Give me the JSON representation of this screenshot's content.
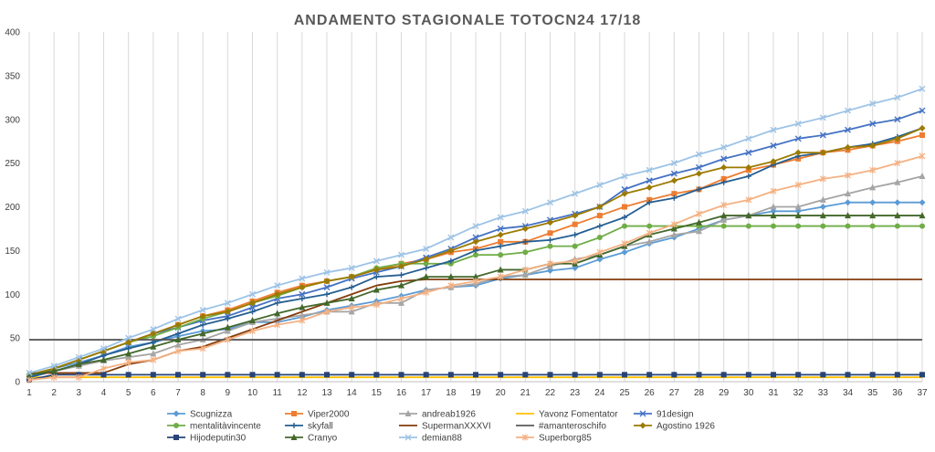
{
  "chart_data": {
    "type": "line",
    "title": "ANDAMENTO STAGIONALE TOTOCN24 17/18",
    "xlabel": "",
    "ylabel": "",
    "ylim": [
      0,
      400
    ],
    "yticks": [
      0,
      50,
      100,
      150,
      200,
      250,
      300,
      350,
      400
    ],
    "x": [
      1,
      2,
      3,
      4,
      5,
      6,
      7,
      8,
      9,
      10,
      11,
      12,
      13,
      14,
      15,
      16,
      17,
      18,
      19,
      20,
      21,
      22,
      23,
      24,
      25,
      26,
      27,
      28,
      29,
      30,
      31,
      32,
      33,
      34,
      35,
      36,
      37
    ],
    "grid": "vertical",
    "legend_position": "bottom",
    "series": [
      {
        "name": "Scugnizza",
        "color": "#5b9bd5",
        "marker": "diamond",
        "values": [
          5,
          15,
          22,
          30,
          40,
          45,
          52,
          58,
          60,
          68,
          68,
          74,
          82,
          87,
          92,
          98,
          105,
          108,
          110,
          118,
          122,
          127,
          130,
          140,
          148,
          158,
          165,
          175,
          185,
          190,
          195,
          195,
          200,
          205,
          205,
          205,
          205
        ]
      },
      {
        "name": "Viper2000",
        "color": "#ed7d31",
        "marker": "square",
        "values": [
          5,
          15,
          25,
          35,
          45,
          55,
          65,
          75,
          82,
          92,
          102,
          110,
          115,
          120,
          128,
          135,
          140,
          148,
          152,
          160,
          160,
          170,
          180,
          190,
          200,
          208,
          215,
          220,
          232,
          242,
          248,
          255,
          262,
          265,
          270,
          275,
          282
        ]
      },
      {
        "name": "andreab1926",
        "color": "#a5a5a5",
        "marker": "triangle",
        "values": [
          5,
          12,
          18,
          24,
          28,
          32,
          42,
          48,
          58,
          68,
          72,
          76,
          80,
          80,
          90,
          90,
          105,
          108,
          112,
          120,
          122,
          132,
          140,
          145,
          155,
          160,
          168,
          172,
          185,
          190,
          200,
          200,
          208,
          215,
          222,
          228,
          235
        ]
      },
      {
        "name": "Yavonz Fomentator",
        "color": "#ffc000",
        "marker": "none",
        "values": [
          5,
          5,
          5,
          5,
          5,
          5,
          5,
          5,
          5,
          5,
          5,
          5,
          5,
          5,
          5,
          5,
          5,
          5,
          5,
          5,
          5,
          5,
          5,
          5,
          5,
          5,
          5,
          5,
          5,
          5,
          5,
          5,
          5,
          5,
          5,
          5,
          5
        ]
      },
      {
        "name": "91design",
        "color": "#4472c4",
        "marker": "x",
        "values": [
          5,
          15,
          25,
          35,
          45,
          55,
          62,
          70,
          75,
          85,
          95,
          100,
          108,
          118,
          125,
          132,
          142,
          152,
          165,
          175,
          178,
          185,
          192,
          200,
          220,
          230,
          238,
          245,
          255,
          262,
          270,
          278,
          282,
          288,
          295,
          300,
          310
        ]
      },
      {
        "name": "mentalitàvincente",
        "color": "#70ad47",
        "marker": "circle",
        "values": [
          8,
          15,
          25,
          35,
          45,
          52,
          62,
          72,
          80,
          90,
          98,
          108,
          115,
          120,
          130,
          135,
          135,
          135,
          145,
          145,
          148,
          155,
          155,
          165,
          178,
          178,
          178,
          178,
          178,
          178,
          178,
          178,
          178,
          178,
          178,
          178,
          178
        ]
      },
      {
        "name": "skyfall",
        "color": "#255e91",
        "marker": "plus",
        "values": [
          5,
          12,
          20,
          30,
          38,
          45,
          55,
          65,
          72,
          80,
          90,
          95,
          100,
          108,
          120,
          122,
          130,
          138,
          150,
          155,
          160,
          162,
          168,
          178,
          188,
          205,
          210,
          220,
          228,
          235,
          248,
          258,
          262,
          268,
          272,
          280,
          290
        ]
      },
      {
        "name": "SupermanXXXVI",
        "color": "#843c0c",
        "marker": "none",
        "values": [
          10,
          10,
          10,
          10,
          20,
          25,
          35,
          40,
          50,
          60,
          70,
          80,
          90,
          100,
          110,
          115,
          117,
          117,
          117,
          117,
          117,
          117,
          117,
          117,
          117,
          117,
          117,
          117,
          117,
          117,
          117,
          117,
          117,
          117,
          117,
          117,
          117
        ]
      },
      {
        "name": "#amanteroschifo",
        "color": "#595959",
        "marker": "none",
        "values": [
          48,
          48,
          48,
          48,
          48,
          48,
          48,
          48,
          48,
          48,
          48,
          48,
          48,
          48,
          48,
          48,
          48,
          48,
          48,
          48,
          48,
          48,
          48,
          48,
          48,
          48,
          48,
          48,
          48,
          48,
          48,
          48,
          48,
          48,
          48,
          48,
          48
        ]
      },
      {
        "name": "Agostino 1926",
        "color": "#9c7a00",
        "marker": "diamond",
        "values": [
          8,
          15,
          25,
          35,
          45,
          55,
          65,
          75,
          80,
          90,
          100,
          108,
          115,
          120,
          128,
          132,
          140,
          150,
          160,
          168,
          175,
          182,
          190,
          200,
          215,
          222,
          230,
          238,
          245,
          245,
          252,
          262,
          262,
          268,
          270,
          278,
          290
        ]
      },
      {
        "name": "Hijodeputin30",
        "color": "#264478",
        "marker": "square",
        "values": [
          2,
          8,
          8,
          8,
          8,
          8,
          8,
          8,
          8,
          8,
          8,
          8,
          8,
          8,
          8,
          8,
          8,
          8,
          8,
          8,
          8,
          8,
          8,
          8,
          8,
          8,
          8,
          8,
          8,
          8,
          8,
          8,
          8,
          8,
          8,
          8,
          8
        ]
      },
      {
        "name": "Cranyo",
        "color": "#43682b",
        "marker": "triangle",
        "values": [
          8,
          12,
          20,
          25,
          32,
          40,
          48,
          55,
          62,
          70,
          78,
          85,
          90,
          95,
          105,
          110,
          120,
          120,
          120,
          128,
          128,
          135,
          135,
          145,
          155,
          168,
          175,
          182,
          190,
          190,
          190,
          190,
          190,
          190,
          190,
          190,
          190
        ]
      },
      {
        "name": "demian88",
        "color": "#9dc3e6",
        "marker": "x",
        "values": [
          10,
          18,
          28,
          38,
          50,
          60,
          72,
          82,
          90,
          100,
          110,
          118,
          125,
          130,
          138,
          145,
          152,
          165,
          178,
          188,
          195,
          205,
          215,
          225,
          235,
          242,
          250,
          260,
          268,
          278,
          288,
          295,
          302,
          310,
          318,
          325,
          335
        ]
      },
      {
        "name": "Superborg85",
        "color": "#f4b183",
        "marker": "star",
        "values": [
          2,
          5,
          5,
          15,
          22,
          25,
          35,
          38,
          48,
          58,
          65,
          70,
          80,
          85,
          88,
          95,
          102,
          110,
          115,
          120,
          128,
          135,
          138,
          148,
          158,
          170,
          180,
          192,
          202,
          208,
          218,
          225,
          232,
          236,
          242,
          250,
          258
        ]
      }
    ]
  }
}
